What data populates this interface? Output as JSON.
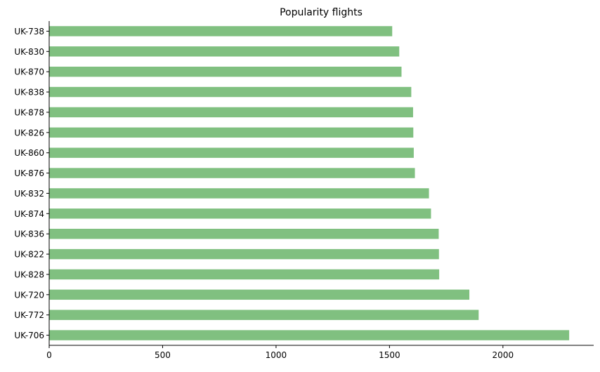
{
  "chart_data": {
    "type": "bar",
    "orientation": "horizontal",
    "title": "Popularity flights",
    "xlabel": "",
    "ylabel": "",
    "xlim": [
      0,
      2400
    ],
    "xticks": [
      0,
      500,
      1000,
      1500,
      2000
    ],
    "grid": false,
    "bar_color": "#80c080",
    "categories": [
      "UK-738",
      "UK-830",
      "UK-870",
      "UK-838",
      "UK-878",
      "UK-826",
      "UK-860",
      "UK-876",
      "UK-832",
      "UK-874",
      "UK-836",
      "UK-822",
      "UK-828",
      "UK-720",
      "UK-772",
      "UK-706"
    ],
    "values": [
      1512,
      1543,
      1553,
      1596,
      1604,
      1605,
      1607,
      1612,
      1674,
      1683,
      1717,
      1718,
      1719,
      1852,
      1893,
      2292
    ]
  }
}
